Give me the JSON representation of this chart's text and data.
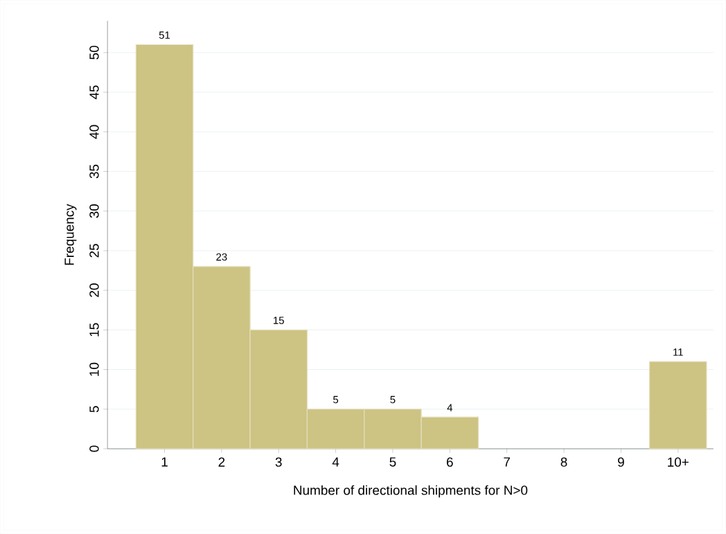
{
  "chart_data": {
    "type": "bar",
    "xlabel": "Number of directional shipments for N>0",
    "ylabel": "Frequency",
    "categories": [
      "1",
      "2",
      "3",
      "4",
      "5",
      "6",
      "7",
      "8",
      "9",
      "10+"
    ],
    "values": [
      51,
      23,
      15,
      5,
      5,
      4,
      0,
      0,
      0,
      11
    ],
    "value_labels": [
      "51",
      "23",
      "15",
      "5",
      "5",
      "4",
      null,
      null,
      null,
      "11"
    ],
    "color": "#cdc383",
    "ylim": [
      0,
      54
    ],
    "yticks": [
      0,
      5,
      10,
      15,
      20,
      25,
      30,
      35,
      40,
      45,
      50
    ],
    "grid": "y"
  }
}
